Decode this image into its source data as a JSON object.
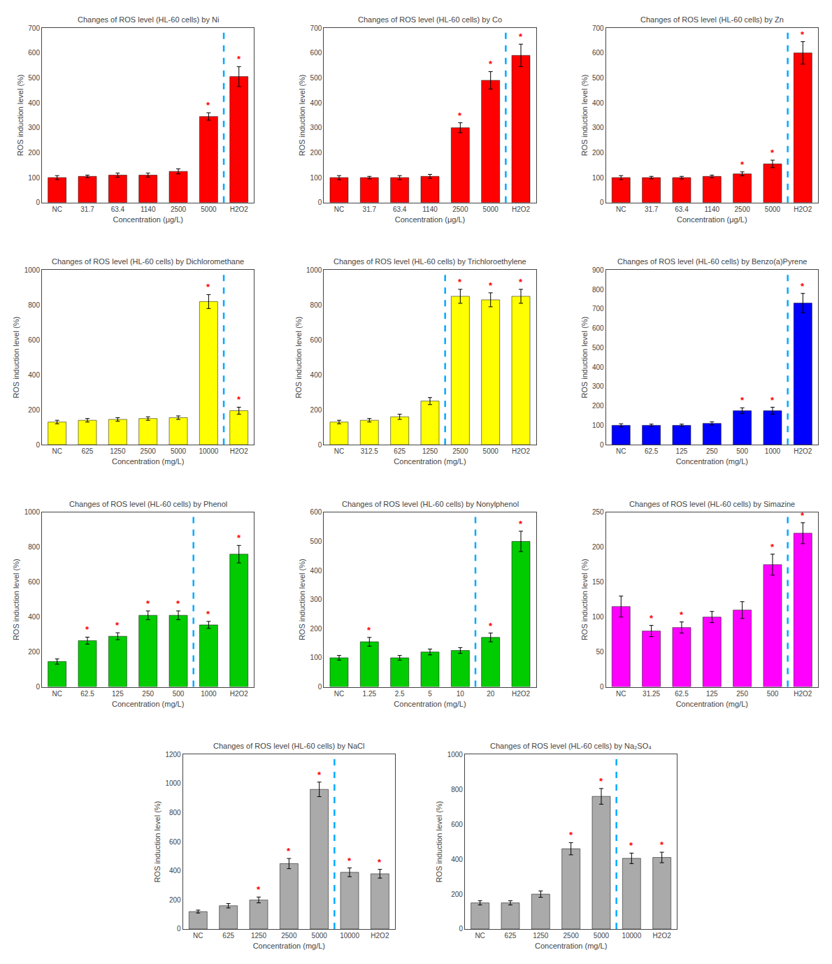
{
  "chart_data": [
    {
      "type": "bar",
      "title": "Changes of ROS level (HL-60 cells) by Ni",
      "color": "#FF0000",
      "xlabel": "Concentration (μg/L)",
      "ylabel": "ROS induction level (%)",
      "categories": [
        "NC",
        "31.7",
        "63.4",
        "1140",
        "2500",
        "5000",
        "H2O2"
      ],
      "values": [
        100,
        105,
        110,
        110,
        125,
        345,
        505
      ],
      "errors": [
        8,
        5,
        8,
        8,
        10,
        15,
        40
      ],
      "annotations": [
        {
          "category": "5000",
          "text": "*",
          "color": "#FF0000"
        },
        {
          "category": "H2O2",
          "text": "*",
          "color": "#FF0000"
        }
      ],
      "vline": {
        "x": 5.5,
        "color": "#00AAFF",
        "line_style": "dashed"
      },
      "ylim": [
        0,
        700
      ],
      "yticks": [
        0,
        100,
        200,
        300,
        400,
        500,
        600,
        700
      ],
      "grid": false
    },
    {
      "type": "bar",
      "title": "Changes of ROS level (HL-60 cells) by Co",
      "color": "#FF0000",
      "xlabel": "Concentration (μg/L)",
      "ylabel": "ROS induction level (%)",
      "categories": [
        "NC",
        "31.7",
        "63.4",
        "1140",
        "2500",
        "5000",
        "H2O2"
      ],
      "values": [
        100,
        100,
        100,
        105,
        300,
        490,
        590
      ],
      "errors": [
        8,
        5,
        8,
        8,
        20,
        35,
        45
      ],
      "annotations": [
        {
          "category": "2500",
          "text": "*",
          "color": "#FF0000"
        },
        {
          "category": "5000",
          "text": "*",
          "color": "#FF0000"
        },
        {
          "category": "H2O2",
          "text": "*",
          "color": "#FF0000"
        }
      ],
      "vline": {
        "x": 5.5,
        "color": "#00AAFF",
        "line_style": "dashed"
      },
      "ylim": [
        0,
        700
      ],
      "yticks": [
        0,
        100,
        200,
        300,
        400,
        500,
        600,
        700
      ],
      "grid": false
    },
    {
      "type": "bar",
      "title": "Changes of ROS level (HL-60 cells) by Zn",
      "color": "#FF0000",
      "xlabel": "Concentration (μg/L)",
      "ylabel": "ROS induction level (%)",
      "categories": [
        "NC",
        "31.7",
        "63.4",
        "1140",
        "2500",
        "5000",
        "H2O2"
      ],
      "values": [
        100,
        100,
        100,
        105,
        115,
        155,
        600
      ],
      "errors": [
        8,
        5,
        5,
        5,
        8,
        15,
        45
      ],
      "annotations": [
        {
          "category": "2500",
          "text": "*",
          "color": "#FF0000"
        },
        {
          "category": "5000",
          "text": "*",
          "color": "#FF0000"
        },
        {
          "category": "H2O2",
          "text": "*",
          "color": "#FF0000"
        }
      ],
      "vline": {
        "x": 5.5,
        "color": "#00AAFF",
        "line_style": "dashed"
      },
      "ylim": [
        0,
        700
      ],
      "yticks": [
        0,
        100,
        200,
        300,
        400,
        500,
        600,
        700
      ],
      "grid": false
    },
    {
      "type": "bar",
      "title": "Changes of ROS level (HL-60 cells) by Dichloromethane",
      "color": "#FFFF00",
      "xlabel": "Concentration (mg/L)",
      "ylabel": "ROS induction level (%)",
      "categories": [
        "NC",
        "625",
        "1250",
        "2500",
        "5000",
        "10000",
        "H2O2"
      ],
      "values": [
        130,
        140,
        145,
        150,
        155,
        820,
        195
      ],
      "errors": [
        10,
        10,
        10,
        10,
        10,
        40,
        20
      ],
      "annotations": [
        {
          "category": "10000",
          "text": "*",
          "color": "#FF0000"
        },
        {
          "category": "H2O2",
          "text": "*",
          "color": "#FF0000"
        }
      ],
      "vline": {
        "x": 5.5,
        "color": "#00AAFF",
        "line_style": "dashed"
      },
      "ylim": [
        0,
        1000
      ],
      "yticks": [
        0,
        200,
        400,
        600,
        800,
        1000
      ],
      "grid": false
    },
    {
      "type": "bar",
      "title": "Changes of ROS level (HL-60 cells) by Trichloroethylene",
      "color": "#FFFF00",
      "xlabel": "Concentration (mg/L)",
      "ylabel": "ROS induction level (%)",
      "categories": [
        "NC",
        "312.5",
        "625",
        "1250",
        "2500",
        "5000",
        "H2O2"
      ],
      "values": [
        130,
        140,
        160,
        250,
        850,
        830,
        850
      ],
      "errors": [
        10,
        10,
        15,
        20,
        40,
        40,
        40
      ],
      "annotations": [
        {
          "category": "2500",
          "text": "*",
          "color": "#FF0000"
        },
        {
          "category": "5000",
          "text": "*",
          "color": "#FF0000"
        },
        {
          "category": "H2O2",
          "text": "*",
          "color": "#FF0000"
        }
      ],
      "vline": {
        "x": 3.5,
        "color": "#00AAFF",
        "line_style": "dashed"
      },
      "ylim": [
        0,
        1000
      ],
      "yticks": [
        0,
        200,
        400,
        600,
        800,
        1000
      ],
      "grid": false
    },
    {
      "type": "bar",
      "title": "Changes of ROS level (HL-60 cells) by Benzo(a)Pyrene",
      "color": "#0000FF",
      "xlabel": "Concentration (mg/L)",
      "ylabel": "ROS induction level (%)",
      "categories": [
        "NC",
        "62.5",
        "125",
        "250",
        "500",
        "1000",
        "H2O2"
      ],
      "values": [
        100,
        100,
        100,
        110,
        175,
        175,
        730
      ],
      "errors": [
        8,
        6,
        6,
        8,
        15,
        18,
        50
      ],
      "annotations": [
        {
          "category": "500",
          "text": "*",
          "color": "#FF0000"
        },
        {
          "category": "1000",
          "text": "*",
          "color": "#FF0000"
        },
        {
          "category": "H2O2",
          "text": "*",
          "color": "#FF0000"
        }
      ],
      "vline": {
        "x": 5.5,
        "color": "#00AAFF",
        "line_style": "dashed"
      },
      "ylim": [
        0,
        900
      ],
      "yticks": [
        0,
        100,
        200,
        300,
        400,
        500,
        600,
        700,
        800,
        900
      ],
      "grid": false
    },
    {
      "type": "bar",
      "title": "Changes of ROS level (HL-60 cells) by Phenol",
      "color": "#00CC00",
      "xlabel": "Concentration (mg/L)",
      "ylabel": "ROS induction level (%)",
      "categories": [
        "NC",
        "62.5",
        "125",
        "250",
        "500",
        "1000",
        "H2O2"
      ],
      "values": [
        145,
        265,
        290,
        410,
        410,
        355,
        760
      ],
      "errors": [
        15,
        20,
        20,
        25,
        25,
        20,
        50
      ],
      "annotations": [
        {
          "category": "62.5",
          "text": "*",
          "color": "#FF0000"
        },
        {
          "category": "125",
          "text": "*",
          "color": "#FF0000"
        },
        {
          "category": "250",
          "text": "*",
          "color": "#FF0000"
        },
        {
          "category": "500",
          "text": "*",
          "color": "#FF0000"
        },
        {
          "category": "1000",
          "text": "*",
          "color": "#FF0000"
        },
        {
          "category": "H2O2",
          "text": "*",
          "color": "#FF0000"
        }
      ],
      "vline": {
        "x": 4.5,
        "color": "#00AAFF",
        "line_style": "dashed"
      },
      "ylim": [
        0,
        1000
      ],
      "yticks": [
        0,
        200,
        400,
        600,
        800,
        1000
      ],
      "grid": false
    },
    {
      "type": "bar",
      "title": "Changes of ROS level (HL-60 cells) by Nonylphenol",
      "color": "#00CC00",
      "xlabel": "Concentration (mg/L)",
      "ylabel": "ROS induction level (%)",
      "categories": [
        "NC",
        "1.25",
        "2.5",
        "5",
        "10",
        "20",
        "H2O2"
      ],
      "values": [
        100,
        155,
        100,
        120,
        125,
        170,
        500
      ],
      "errors": [
        8,
        15,
        8,
        10,
        10,
        15,
        35
      ],
      "annotations": [
        {
          "category": "1.25",
          "text": "*",
          "color": "#FF0000"
        },
        {
          "category": "20",
          "text": "*",
          "color": "#FF0000"
        },
        {
          "category": "H2O2",
          "text": "*",
          "color": "#FF0000"
        }
      ],
      "vline": {
        "x": 4.5,
        "color": "#00AAFF",
        "line_style": "dashed"
      },
      "ylim": [
        0,
        600
      ],
      "yticks": [
        0,
        100,
        200,
        300,
        400,
        500,
        600
      ],
      "grid": false
    },
    {
      "type": "bar",
      "title": "Changes of ROS level (HL-60 cells) by Simazine",
      "color": "#FF00FF",
      "xlabel": "Concentration (mg/L)",
      "ylabel": "ROS induction level (%)",
      "categories": [
        "NC",
        "31.25",
        "62.5",
        "125",
        "250",
        "500",
        "H2O2"
      ],
      "values": [
        115,
        80,
        85,
        100,
        110,
        175,
        220
      ],
      "errors": [
        15,
        8,
        8,
        8,
        12,
        15,
        15
      ],
      "annotations": [
        {
          "category": "31.25",
          "text": "*",
          "color": "#FF0000"
        },
        {
          "category": "62.5",
          "text": "*",
          "color": "#FF0000"
        },
        {
          "category": "500",
          "text": "*",
          "color": "#FF0000"
        },
        {
          "category": "H2O2",
          "text": "*",
          "color": "#FF0000"
        }
      ],
      "vline": {
        "x": 5.5,
        "color": "#00AAFF",
        "line_style": "dashed"
      },
      "ylim": [
        0,
        250
      ],
      "yticks": [
        0,
        50,
        100,
        150,
        200,
        250
      ],
      "grid": false
    },
    {
      "type": "bar",
      "title": "Changes of ROS level (HL-60 cells) by NaCl",
      "color": "#AAAAAA",
      "xlabel": "Concentration (mg/L)",
      "ylabel": "ROS induction level (%)",
      "categories": [
        "NC",
        "625",
        "1250",
        "2500",
        "5000",
        "10000",
        "H2O2"
      ],
      "values": [
        120,
        160,
        200,
        450,
        960,
        390,
        380
      ],
      "errors": [
        10,
        15,
        20,
        35,
        50,
        30,
        30
      ],
      "annotations": [
        {
          "category": "1250",
          "text": "*",
          "color": "#FF0000"
        },
        {
          "category": "2500",
          "text": "*",
          "color": "#FF0000"
        },
        {
          "category": "5000",
          "text": "*",
          "color": "#FF0000"
        },
        {
          "category": "10000",
          "text": "*",
          "color": "#FF0000"
        },
        {
          "category": "H2O2",
          "text": "*",
          "color": "#FF0000"
        }
      ],
      "vline": {
        "x": 4.5,
        "color": "#00AAFF",
        "line_style": "dashed"
      },
      "ylim": [
        0,
        1200
      ],
      "yticks": [
        0,
        200,
        400,
        600,
        800,
        1000,
        1200
      ],
      "grid": false
    },
    {
      "type": "bar",
      "title": "Changes of ROS level (HL-60 cells) by Na₂SO₄",
      "color": "#AAAAAA",
      "xlabel": "Concentration (mg/L)",
      "ylabel": "ROS induction level (%)",
      "categories": [
        "NC",
        "625",
        "1250",
        "2500",
        "5000",
        "10000",
        "H2O2"
      ],
      "values": [
        150,
        150,
        200,
        460,
        760,
        405,
        410
      ],
      "errors": [
        12,
        12,
        18,
        35,
        45,
        30,
        30
      ],
      "annotations": [
        {
          "category": "2500",
          "text": "*",
          "color": "#FF0000"
        },
        {
          "category": "5000",
          "text": "*",
          "color": "#FF0000"
        },
        {
          "category": "10000",
          "text": "*",
          "color": "#FF0000"
        },
        {
          "category": "H2O2",
          "text": "*",
          "color": "#FF0000"
        }
      ],
      "vline": {
        "x": 4.5,
        "color": "#00AAFF",
        "line_style": "dashed"
      },
      "ylim": [
        0,
        1000
      ],
      "yticks": [
        0,
        200,
        400,
        600,
        800,
        1000
      ],
      "grid": false
    }
  ]
}
